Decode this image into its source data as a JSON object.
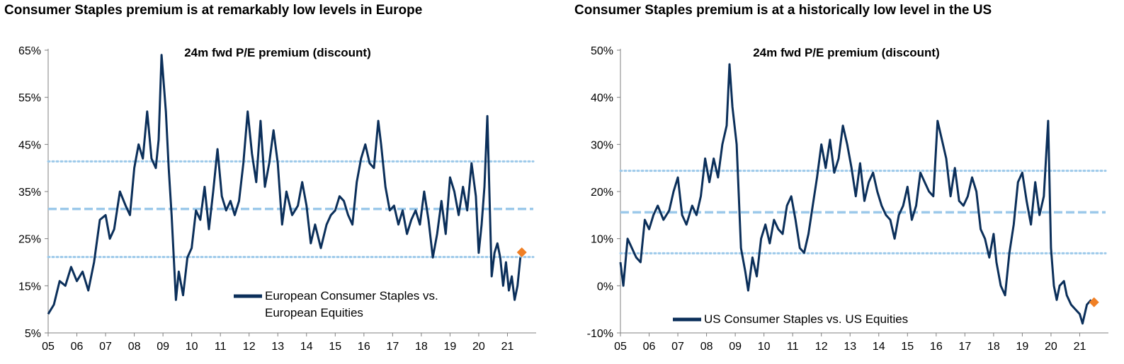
{
  "colors": {
    "series": "#0b2f5a",
    "mean_line": "#9cc9ea",
    "band_lines": "#9cc9ea",
    "marker": "#f07f24"
  },
  "chart_data": [
    {
      "type": "line",
      "title": "Consumer Staples premium is at remarkably low levels in Europe",
      "subtitle": "24m fwd P/E premium (discount)",
      "ylim": [
        5,
        65
      ],
      "yticks": [
        "5%",
        "15%",
        "25%",
        "35%",
        "45%",
        "55%",
        "65%"
      ],
      "ytick_values": [
        5,
        15,
        25,
        35,
        45,
        55,
        65
      ],
      "xlim": [
        2005,
        2022
      ],
      "xticks": [
        "05",
        "06",
        "07",
        "08",
        "09",
        "10",
        "11",
        "12",
        "13",
        "14",
        "15",
        "16",
        "17",
        "18",
        "19",
        "20",
        "21"
      ],
      "legend": "top-right-lower",
      "legend_lines": [
        "European Consumer Staples vs.",
        "European Equities"
      ],
      "mean": 31.3,
      "upper_band": 41.4,
      "lower_band": 21.1,
      "latest_marker": {
        "x": 2021.5,
        "y": 22.1
      },
      "series": [
        {
          "name": "European Consumer Staples vs. European Equities",
          "x": [
            2005.0,
            2005.2,
            2005.4,
            2005.6,
            2005.8,
            2006.0,
            2006.2,
            2006.4,
            2006.6,
            2006.8,
            2007.0,
            2007.15,
            2007.3,
            2007.5,
            2007.7,
            2007.85,
            2008.0,
            2008.15,
            2008.3,
            2008.45,
            2008.6,
            2008.75,
            2008.85,
            2008.95,
            2009.1,
            2009.2,
            2009.3,
            2009.45,
            2009.55,
            2009.7,
            2009.85,
            2010.0,
            2010.15,
            2010.3,
            2010.45,
            2010.6,
            2010.75,
            2010.9,
            2011.05,
            2011.2,
            2011.35,
            2011.5,
            2011.65,
            2011.8,
            2011.95,
            2012.1,
            2012.25,
            2012.4,
            2012.55,
            2012.7,
            2012.85,
            2013.0,
            2013.15,
            2013.3,
            2013.5,
            2013.7,
            2013.85,
            2014.0,
            2014.15,
            2014.3,
            2014.5,
            2014.7,
            2014.85,
            2015.0,
            2015.15,
            2015.3,
            2015.45,
            2015.6,
            2015.75,
            2015.9,
            2016.05,
            2016.2,
            2016.35,
            2016.5,
            2016.6,
            2016.75,
            2016.9,
            2017.05,
            2017.2,
            2017.35,
            2017.5,
            2017.65,
            2017.8,
            2017.95,
            2018.1,
            2018.25,
            2018.4,
            2018.55,
            2018.7,
            2018.85,
            2019.0,
            2019.15,
            2019.3,
            2019.45,
            2019.6,
            2019.75,
            2019.9,
            2020.0,
            2020.1,
            2020.2,
            2020.3,
            2020.45,
            2020.55,
            2020.65,
            2020.75,
            2020.85,
            2020.95,
            2021.05,
            2021.15,
            2021.25,
            2021.35,
            2021.45
          ],
          "y": [
            9,
            11,
            16,
            15,
            19,
            16,
            18,
            14,
            20,
            29,
            30,
            25,
            27,
            35,
            32,
            30,
            40,
            45,
            42,
            52,
            42,
            40,
            46,
            64,
            52,
            40,
            30,
            12,
            18,
            13,
            21,
            23,
            31,
            29,
            36,
            27,
            35,
            44,
            34,
            31,
            33,
            30,
            33,
            41,
            52,
            43,
            37,
            50,
            36,
            41,
            48,
            41,
            28,
            35,
            30,
            32,
            37,
            32,
            24,
            28,
            23,
            28,
            30,
            31,
            34,
            33,
            30,
            28,
            37,
            42,
            45,
            41,
            40,
            50,
            45,
            36,
            31,
            32,
            28,
            31,
            26,
            29,
            31,
            28,
            35,
            29,
            21,
            26,
            33,
            26,
            38,
            35,
            30,
            36,
            31,
            41,
            34,
            22,
            28,
            36,
            51,
            17,
            22,
            24,
            21,
            15,
            20,
            14,
            17,
            12,
            15,
            21
          ]
        }
      ]
    },
    {
      "type": "line",
      "title": "Consumer Staples premium is at a historically low level in the US",
      "subtitle": "24m fwd P/E premium (discount)",
      "ylim": [
        -10,
        50
      ],
      "yticks": [
        "-10%",
        "0%",
        "10%",
        "20%",
        "30%",
        "40%",
        "50%"
      ],
      "ytick_values": [
        -10,
        0,
        10,
        20,
        30,
        40,
        50
      ],
      "xlim": [
        2005,
        2022
      ],
      "xticks": [
        "05",
        "06",
        "07",
        "08",
        "09",
        "10",
        "11",
        "12",
        "13",
        "14",
        "15",
        "16",
        "17",
        "18",
        "19",
        "20",
        "21"
      ],
      "legend": "bottom-center",
      "legend_lines": [
        "US Consumer Staples vs. US Equities"
      ],
      "mean": 15.6,
      "upper_band": 24.4,
      "lower_band": 6.9,
      "latest_marker": {
        "x": 2021.5,
        "y": -3.5
      },
      "series": [
        {
          "name": "US Consumer Staples vs. US Equities",
          "x": [
            2005.0,
            2005.1,
            2005.25,
            2005.4,
            2005.55,
            2005.7,
            2005.85,
            2006.0,
            2006.15,
            2006.3,
            2006.5,
            2006.7,
            2006.85,
            2007.0,
            2007.15,
            2007.3,
            2007.5,
            2007.65,
            2007.8,
            2007.95,
            2008.1,
            2008.25,
            2008.4,
            2008.55,
            2008.7,
            2008.8,
            2008.9,
            2009.05,
            2009.2,
            2009.35,
            2009.45,
            2009.6,
            2009.75,
            2009.9,
            2010.05,
            2010.2,
            2010.35,
            2010.5,
            2010.65,
            2010.8,
            2010.95,
            2011.1,
            2011.25,
            2011.4,
            2011.55,
            2011.7,
            2011.85,
            2012.0,
            2012.15,
            2012.3,
            2012.45,
            2012.6,
            2012.75,
            2012.9,
            2013.05,
            2013.2,
            2013.35,
            2013.5,
            2013.65,
            2013.8,
            2013.95,
            2014.1,
            2014.25,
            2014.4,
            2014.55,
            2014.7,
            2014.85,
            2015.0,
            2015.15,
            2015.3,
            2015.45,
            2015.6,
            2015.75,
            2015.9,
            2016.05,
            2016.2,
            2016.35,
            2016.5,
            2016.65,
            2016.8,
            2016.95,
            2017.1,
            2017.25,
            2017.4,
            2017.55,
            2017.7,
            2017.85,
            2018.0,
            2018.1,
            2018.25,
            2018.4,
            2018.55,
            2018.7,
            2018.85,
            2019.0,
            2019.15,
            2019.3,
            2019.45,
            2019.6,
            2019.75,
            2019.9,
            2020.0,
            2020.1,
            2020.2,
            2020.3,
            2020.45,
            2020.55,
            2020.7,
            2020.85,
            2021.0,
            2021.1,
            2021.25,
            2021.4
          ],
          "y": [
            5,
            0,
            10,
            8,
            6,
            5,
            14,
            12,
            15,
            17,
            14,
            16,
            20,
            23,
            15,
            13,
            17,
            15,
            19,
            27,
            22,
            27,
            23,
            30,
            34,
            47,
            38,
            30,
            8,
            3,
            -1,
            6,
            2,
            10,
            13,
            9,
            14,
            12,
            11,
            17,
            19,
            14,
            8,
            7,
            11,
            17,
            23,
            30,
            25,
            31,
            24,
            27,
            34,
            30,
            25,
            19,
            26,
            18,
            22,
            24,
            20,
            17,
            15,
            14,
            10,
            15,
            17,
            21,
            14,
            17,
            24,
            22,
            20,
            19,
            35,
            31,
            27,
            19,
            25,
            18,
            17,
            19,
            23,
            20,
            12,
            10,
            6,
            11,
            5,
            0,
            -2,
            7,
            13,
            22,
            24,
            18,
            13,
            22,
            15,
            19,
            35,
            8,
            0,
            -3,
            0,
            1,
            -2,
            -4,
            -5,
            -6,
            -8,
            -4,
            -3
          ]
        }
      ]
    }
  ]
}
